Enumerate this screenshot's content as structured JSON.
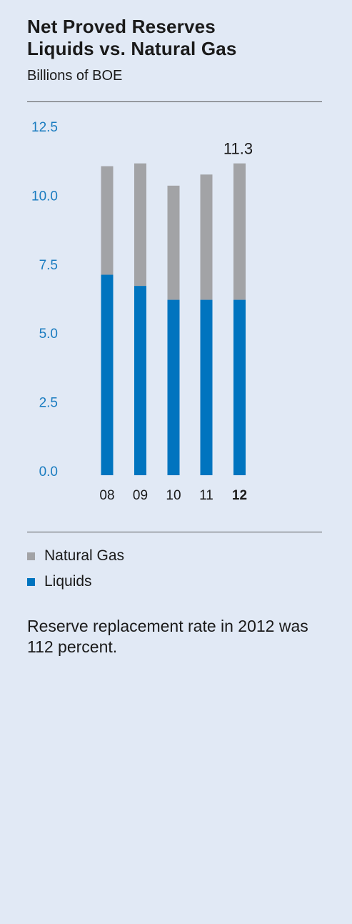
{
  "title_line1": "Net Proved Reserves",
  "title_line2": "Liquids vs. Natural Gas",
  "subtitle": "Billions of BOE",
  "legend": [
    {
      "label": "Natural Gas",
      "color": "#a2a3a6"
    },
    {
      "label": "Liquids",
      "color": "#0074bf"
    }
  ],
  "note": "Reserve replacement rate in 2012 was 112 percent.",
  "chart_data": {
    "type": "bar",
    "stacked": true,
    "categories": [
      "08",
      "09",
      "10",
      "11",
      "12"
    ],
    "highlight_category": "12",
    "series": [
      {
        "name": "Liquids",
        "color": "#0074bf",
        "values": [
          7.2,
          6.8,
          6.3,
          6.3,
          6.3
        ]
      },
      {
        "name": "Natural Gas",
        "color": "#a2a3a6",
        "values": [
          3.9,
          4.4,
          4.1,
          4.5,
          4.9
        ]
      }
    ],
    "yticks": [
      "0.0",
      "2.5",
      "5.0",
      "7.5",
      "10.0",
      "12.5"
    ],
    "ylim": [
      0,
      12.5
    ],
    "data_labels": [
      {
        "category": "12",
        "text": "11.3"
      }
    ],
    "grid": false
  }
}
